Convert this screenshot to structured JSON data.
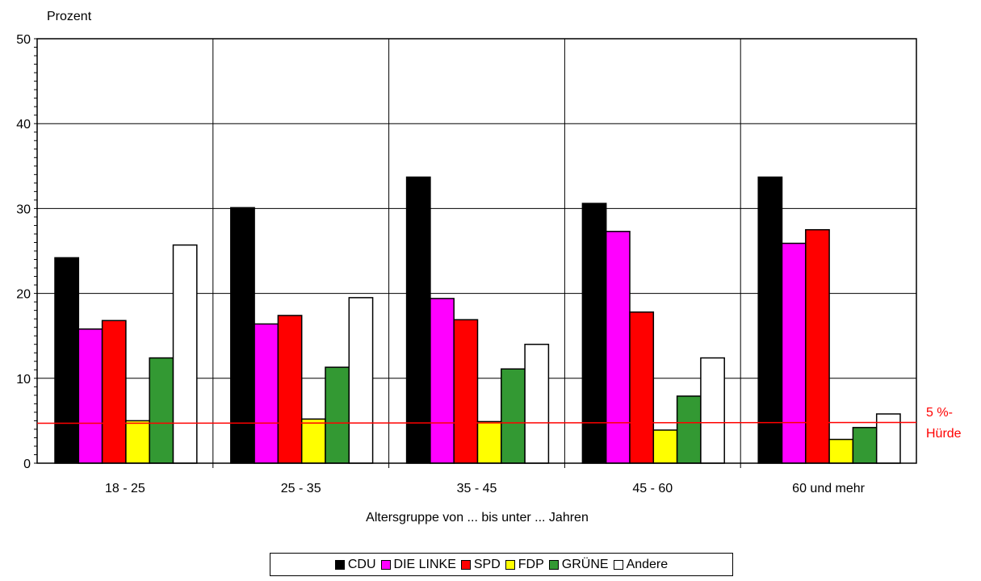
{
  "chart_data": {
    "type": "bar",
    "ylabel": "Prozent",
    "xlabel": "Altersgruppe von ... bis unter ... Jahren",
    "ylim": [
      0,
      50
    ],
    "yticks": [
      0,
      10,
      20,
      30,
      40,
      50
    ],
    "grid": true,
    "legend_position": "bottom-center",
    "categories": [
      "18 - 25",
      "25 - 35",
      "35 - 45",
      "45 - 60",
      "60 und mehr"
    ],
    "series": [
      {
        "name": "CDU",
        "color": "#000000",
        "values": [
          24.2,
          30.1,
          33.7,
          30.6,
          33.7
        ]
      },
      {
        "name": "DIE LINKE",
        "color": "#ff00ff",
        "values": [
          15.8,
          16.4,
          19.4,
          27.3,
          25.9
        ]
      },
      {
        "name": "SPD",
        "color": "#ff0000",
        "values": [
          16.8,
          17.4,
          16.9,
          17.8,
          27.5
        ]
      },
      {
        "name": "FDP",
        "color": "#ffff00",
        "values": [
          5.0,
          5.2,
          4.9,
          3.9,
          2.8
        ]
      },
      {
        "name": "GRÜNE",
        "color": "#339933",
        "values": [
          12.4,
          11.3,
          11.1,
          7.9,
          4.2
        ]
      },
      {
        "name": "Andere",
        "color": "#ffffff",
        "values": [
          25.7,
          19.5,
          14.0,
          12.4,
          5.8
        ]
      }
    ],
    "threshold": {
      "value": 4.7,
      "label_line1": "5 %-",
      "label_line2": "Hürde",
      "color": "#ff0000"
    }
  }
}
